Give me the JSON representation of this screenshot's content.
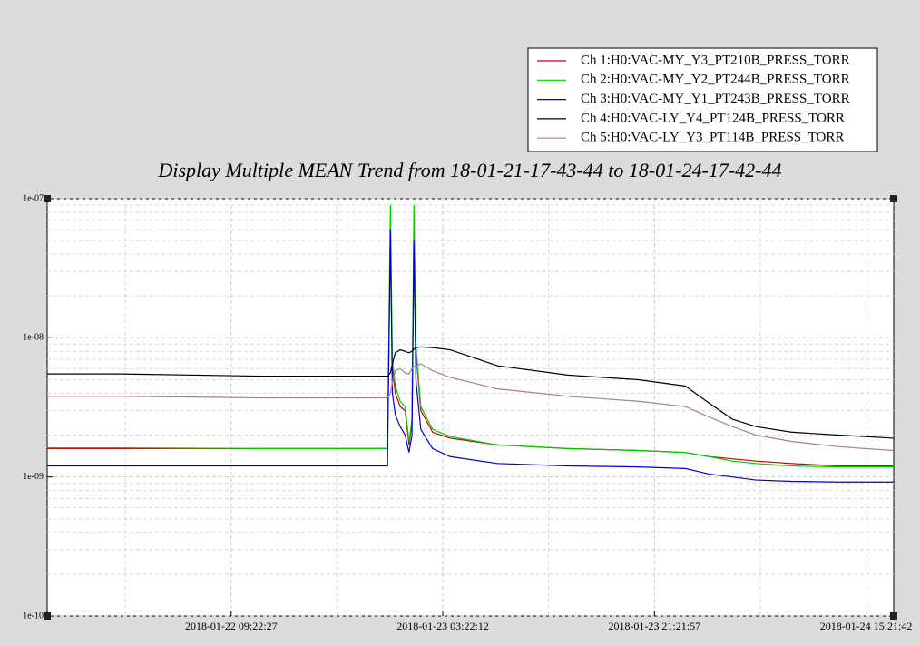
{
  "chart_data": {
    "type": "line",
    "title": "Display Multiple MEAN Trend from 18-01-21-17-43-44 to 18-01-24-17-42-44",
    "log_y": true,
    "grid": true,
    "minor_grid": true,
    "legend": "top-right",
    "x": [
      "2018-01-21 17:43:44",
      "2018-01-22 00:00:00",
      "2018-01-22 12:00:00",
      "2018-01-22 22:40:00",
      "2018-01-22 22:55:00",
      "2018-01-22 23:05:00",
      "2018-01-22 23:20:00",
      "2018-01-22 23:45:00",
      "2018-01-23 00:10:00",
      "2018-01-23 00:30:00",
      "2018-01-23 00:45:00",
      "2018-01-23 00:55:00",
      "2018-01-23 01:05:00",
      "2018-01-23 01:30:00",
      "2018-01-23 02:30:00",
      "2018-01-23 04:00:00",
      "2018-01-23 08:00:00",
      "2018-01-23 14:00:00",
      "2018-01-23 20:00:00",
      "2018-01-24 00:00:00",
      "2018-01-24 02:00:00",
      "2018-01-24 04:00:00",
      "2018-01-24 06:00:00",
      "2018-01-24 09:00:00",
      "2018-01-24 13:00:00",
      "2018-01-24 17:42:44"
    ],
    "xlim": [
      "2018-01-21 17:43:44",
      "2018-01-24 17:42:44"
    ],
    "xticks": [
      "2018-01-22 09:22:27",
      "2018-01-23 03:22:12",
      "2018-01-23 21:21:57",
      "2018-01-24 15:21:42"
    ],
    "ylim": [
      1e-10,
      1e-07
    ],
    "yticks": [
      {
        "value": 1e-10,
        "label": "1e-10"
      },
      {
        "value": 1e-09,
        "label": "1e-09"
      },
      {
        "value": 1e-08,
        "label": "1e-08"
      },
      {
        "value": 1e-07,
        "label": "1e-07"
      }
    ],
    "series": [
      {
        "name": "Ch 1:H0:VAC-MY_Y3_PT210B_PRESS_TORR",
        "color": "#cc0000",
        "values": [
          1.6e-09,
          1.6e-09,
          1.6e-09,
          1.6e-09,
          5e-08,
          6e-09,
          4e-09,
          3.2e-09,
          3e-09,
          1.7e-09,
          2.5e-09,
          5e-08,
          8e-09,
          3e-09,
          2.1e-09,
          1.9e-09,
          1.7e-09,
          1.6e-09,
          1.55e-09,
          1.5e-09,
          1.4e-09,
          1.35e-09,
          1.3e-09,
          1.25e-09,
          1.2e-09,
          1.2e-09
        ]
      },
      {
        "name": "Ch 2:H0:VAC-MY_Y2_PT244B_PRESS_TORR",
        "color": "#00cc00",
        "values": [
          1.62e-09,
          1.62e-09,
          1.6e-09,
          1.6e-09,
          9e-08,
          7e-09,
          4.5e-09,
          3.5e-09,
          3.2e-09,
          1.8e-09,
          2.6e-09,
          9e-08,
          9e-09,
          3.2e-09,
          2.2e-09,
          1.95e-09,
          1.7e-09,
          1.6e-09,
          1.55e-09,
          1.5e-09,
          1.4e-09,
          1.3e-09,
          1.25e-09,
          1.2e-09,
          1.18e-09,
          1.18e-09
        ]
      },
      {
        "name": "Ch 3:H0:VAC-MY_Y1_PT243B_PRESS_TORR",
        "color": "#0000cc",
        "values": [
          1.2e-09,
          1.2e-09,
          1.2e-09,
          1.2e-09,
          6e-08,
          4e-09,
          2.8e-09,
          2.3e-09,
          2e-09,
          1.5e-09,
          2e-09,
          5e-08,
          5e-09,
          2.2e-09,
          1.6e-09,
          1.4e-09,
          1.25e-09,
          1.2e-09,
          1.18e-09,
          1.15e-09,
          1.05e-09,
          1e-09,
          9.5e-10,
          9.3e-10,
          9.2e-10,
          9.2e-10
        ]
      },
      {
        "name": "Ch 4:H0:VAC-LY_Y4_PT124B_PRESS_TORR",
        "color": "#000000",
        "values": [
          5.5e-09,
          5.5e-09,
          5.3e-09,
          5.3e-09,
          5.6e-09,
          6.5e-09,
          7.8e-09,
          8.2e-09,
          8e-09,
          7.8e-09,
          8e-09,
          8.3e-09,
          8.5e-09,
          8.6e-09,
          8.5e-09,
          8.2e-09,
          6.3e-09,
          5.4e-09,
          5e-09,
          4.5e-09,
          3.4e-09,
          2.6e-09,
          2.3e-09,
          2.1e-09,
          2e-09,
          1.9e-09
        ]
      },
      {
        "name": "Ch 5:H0:VAC-LY_Y3_PT114B_PRESS_TORR",
        "color": "#b08080",
        "values": [
          3.8e-09,
          3.8e-09,
          3.7e-09,
          3.7e-09,
          4e-09,
          4.8e-09,
          5.8e-09,
          6e-09,
          5.6e-09,
          5.5e-09,
          6e-09,
          6.2e-09,
          6.3e-09,
          6.5e-09,
          5.8e-09,
          5.2e-09,
          4.3e-09,
          3.8e-09,
          3.5e-09,
          3.2e-09,
          2.7e-09,
          2.3e-09,
          2e-09,
          1.8e-09,
          1.65e-09,
          1.55e-09
        ]
      }
    ]
  }
}
